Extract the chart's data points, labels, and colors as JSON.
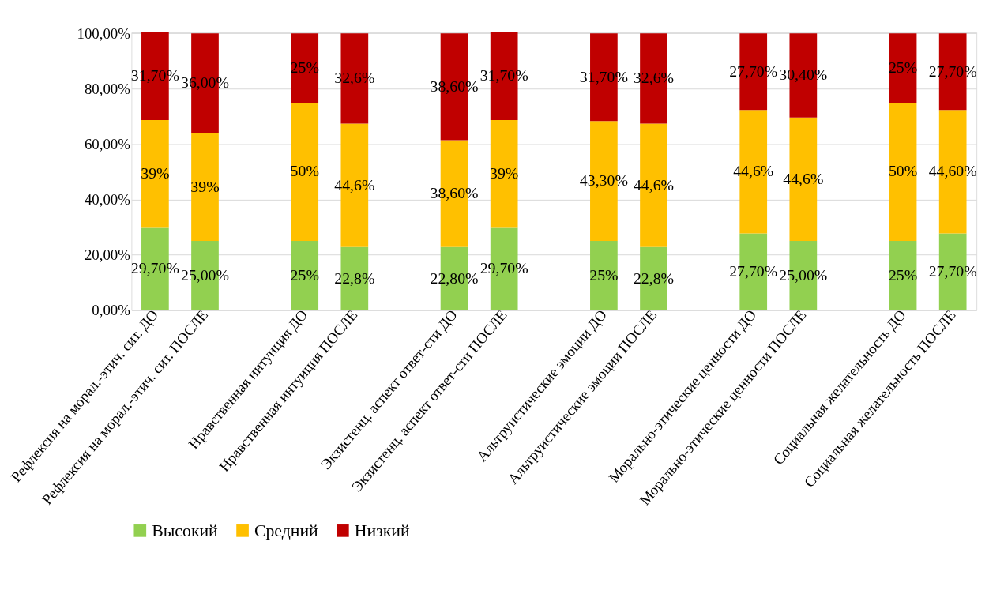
{
  "chart_data": {
    "type": "bar",
    "stacked": true,
    "categories": [
      "Рефлексия на морал.-этич. сит. ДО",
      "Рефлексия на морал.-этич. сит. ПОСЛЕ",
      null,
      "Нравственная интуиция ДО",
      "Нравственная интуиция ПОСЛЕ",
      null,
      "Экзистенц. аспект ответ-сти ДО",
      "Экзистенц. аспект ответ-сти ПОСЛЕ",
      null,
      "Альтруистические эмоции ДО",
      "Альтруистические эмоции ПОСЛЕ",
      null,
      "Морально-этические ценности ДО",
      "Морально-этические ценности ПОСЛЕ",
      null,
      "Социальная желательность ДО",
      "Социальная желательность ПОСЛЕ"
    ],
    "series": [
      {
        "name": "Высокий",
        "color": "#92d050",
        "values": [
          29.7,
          25.0,
          null,
          25,
          22.8,
          null,
          22.8,
          29.7,
          null,
          25,
          22.8,
          null,
          27.7,
          25.0,
          null,
          25,
          27.7
        ],
        "value_labels": [
          "29,70%",
          "25,00%",
          null,
          "25%",
          "22,8%",
          null,
          "22,80%",
          "29,70%",
          null,
          "25%",
          "22,8%",
          null,
          "27,70%",
          "25,00%",
          null,
          "25%",
          "27,70%"
        ]
      },
      {
        "name": "Средний",
        "color": "#ffc000",
        "values": [
          39,
          39,
          null,
          50,
          44.6,
          null,
          38.6,
          39,
          null,
          43.3,
          44.6,
          null,
          44.6,
          44.6,
          null,
          50,
          44.6
        ],
        "value_labels": [
          "39%",
          "39%",
          null,
          "50%",
          "44,6%",
          null,
          "38,60%",
          "39%",
          null,
          "43,30%",
          "44,6%",
          null,
          "44,6%",
          "44,6%",
          null,
          "50%",
          "44,60%"
        ]
      },
      {
        "name": "Низкий",
        "color": "#c00000",
        "values": [
          31.7,
          36.0,
          null,
          25,
          32.6,
          null,
          38.6,
          31.7,
          null,
          31.7,
          32.6,
          null,
          27.7,
          30.4,
          null,
          25,
          27.7
        ],
        "value_labels": [
          "31,70%",
          "36,00%",
          null,
          "25%",
          "32,6%",
          null,
          "38,60%",
          "31,70%",
          null,
          "31,70%",
          "32,6%",
          null,
          "27,70%",
          "30,40%",
          null,
          "25%",
          "27,70%"
        ]
      }
    ],
    "ylim": [
      0,
      100.4
    ],
    "yticks": [
      {
        "value": 0,
        "label": "0,00%"
      },
      {
        "value": 20,
        "label": "20,00%"
      },
      {
        "value": 40,
        "label": "40,00%"
      },
      {
        "value": 60,
        "label": "60,00%"
      },
      {
        "value": 80,
        "label": "80,00%"
      },
      {
        "value": 100,
        "label": "100,00%"
      }
    ],
    "grid": "y",
    "legend": "bottom"
  }
}
